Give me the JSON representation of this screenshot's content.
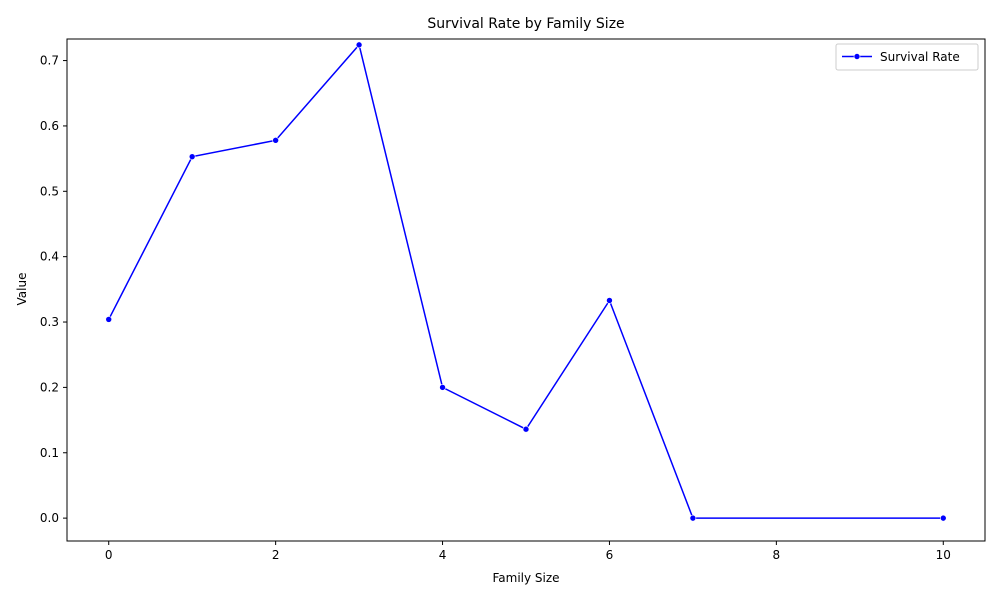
{
  "chart_data": {
    "type": "line",
    "title": "Survival Rate by Family Size",
    "xlabel": "Family Size",
    "ylabel": "Value",
    "xlim": [
      -0.5,
      10.5
    ],
    "ylim": [
      -0.035,
      0.733
    ],
    "x_ticks": [
      "0",
      "2",
      "4",
      "6",
      "8",
      "10"
    ],
    "y_ticks": [
      "0.0",
      "0.1",
      "0.2",
      "0.3",
      "0.4",
      "0.5",
      "0.6",
      "0.7"
    ],
    "grid": false,
    "legend_position": "top-right",
    "series": [
      {
        "name": "Survival Rate",
        "color": "#0000ff",
        "x": [
          0,
          1,
          2,
          3,
          4,
          5,
          6,
          7,
          10
        ],
        "y": [
          0.304,
          0.553,
          0.578,
          0.724,
          0.2,
          0.136,
          0.333,
          0.0,
          0.0
        ]
      }
    ]
  }
}
